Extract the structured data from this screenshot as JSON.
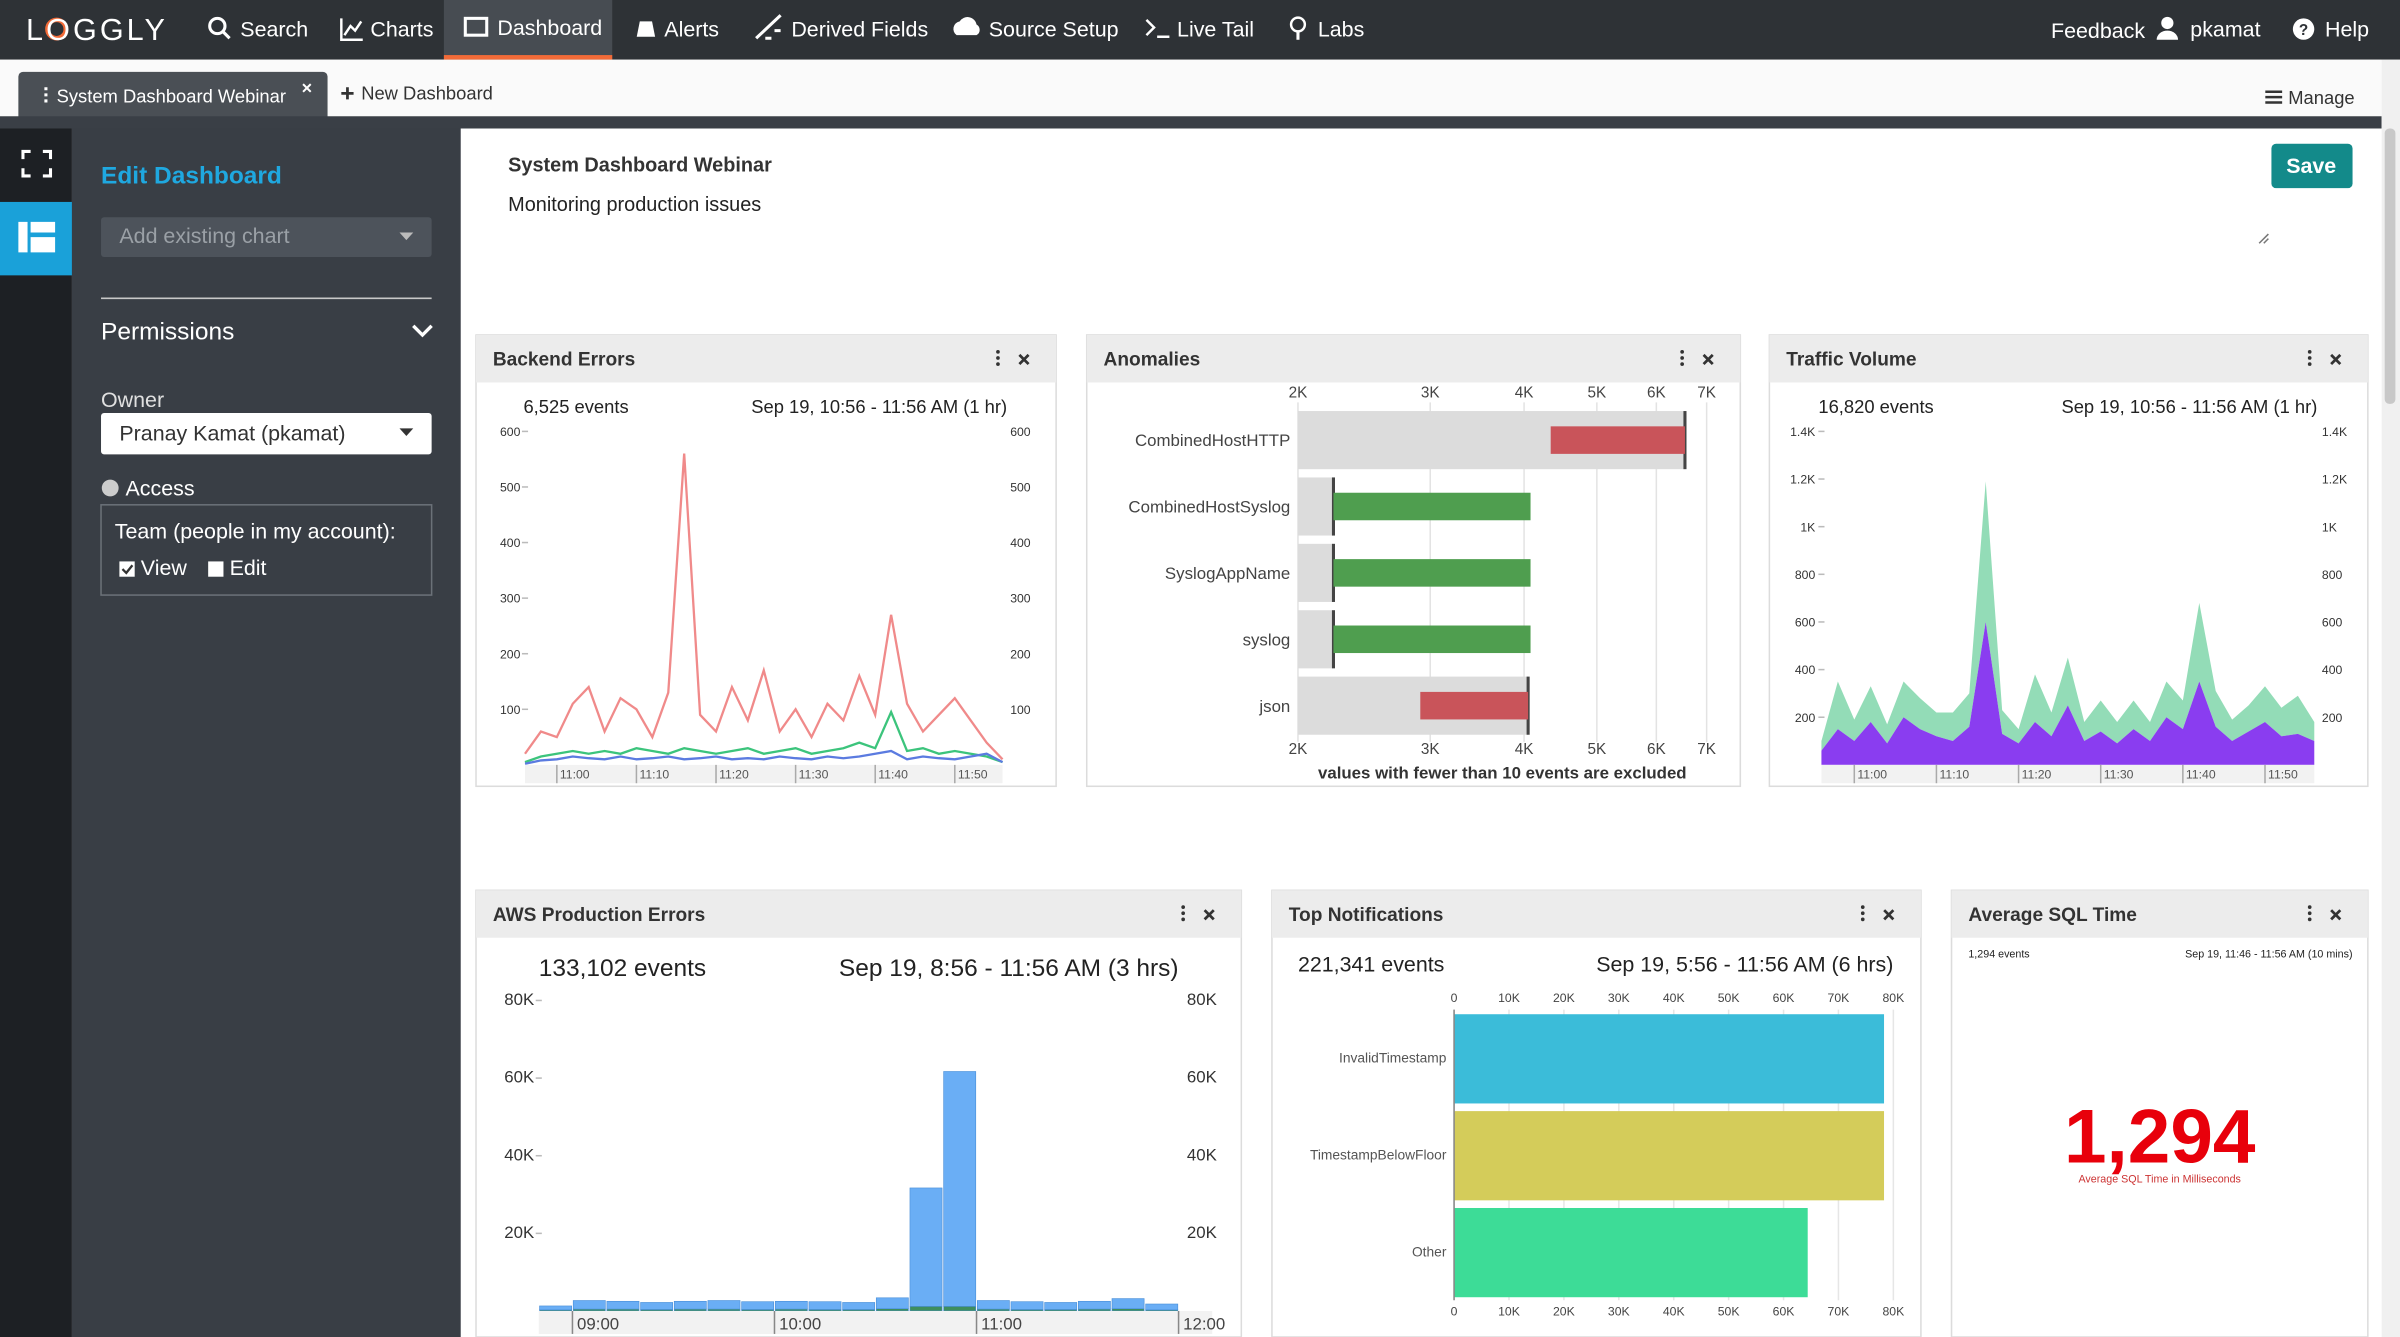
{
  "nav": {
    "logo": "LOGGLY",
    "items": [
      "Search",
      "Charts",
      "Dashboard",
      "Alerts",
      "Derived Fields",
      "Source Setup",
      "Live Tail",
      "Labs"
    ],
    "right": [
      "Feedback",
      "pkamat",
      "Help"
    ]
  },
  "tabs": {
    "active": "System Dashboard Webinar",
    "new": "New Dashboard",
    "manage": "Manage"
  },
  "sidebar": {
    "title": "Edit Dashboard",
    "add_chart": "Add existing chart",
    "permissions": "Permissions",
    "owner_label": "Owner",
    "owner": "Pranay Kamat (pkamat)",
    "access_label": "Access",
    "team": "Team (people in my account):",
    "view": "View",
    "edit": "Edit"
  },
  "dashboard": {
    "title": "System Dashboard Webinar",
    "description": "Monitoring production issues",
    "save": "Save"
  },
  "chart_data": [
    {
      "type": "line",
      "title": "Backend Errors",
      "events": "6,525 events",
      "time_range": "Sep 19, 10:56 - 11:56 AM  (1 hr)",
      "categories": [
        null,
        null,
        "11:00",
        null,
        null,
        null,
        null,
        "11:10",
        null,
        null,
        null,
        null,
        "11:20",
        null,
        null,
        null,
        null,
        "11:30",
        null,
        null,
        null,
        null,
        "11:40",
        null,
        null,
        null,
        null,
        "11:50",
        null,
        null,
        null
      ],
      "series": [
        {
          "color": "#f08a8a",
          "values": [
            20,
            60,
            50,
            110,
            140,
            60,
            120,
            100,
            50,
            130,
            560,
            90,
            60,
            140,
            80,
            170,
            60,
            100,
            50,
            110,
            80,
            160,
            90,
            270,
            110,
            60,
            90,
            120,
            80,
            40,
            10
          ]
        },
        {
          "color": "#3cc47c",
          "values": [
            5,
            15,
            20,
            25,
            20,
            25,
            20,
            30,
            25,
            20,
            30,
            25,
            20,
            25,
            30,
            20,
            25,
            30,
            20,
            25,
            30,
            40,
            30,
            95,
            25,
            30,
            20,
            25,
            20,
            15,
            5
          ]
        },
        {
          "color": "#5b7be0",
          "values": [
            2,
            8,
            10,
            15,
            12,
            10,
            15,
            10,
            12,
            15,
            10,
            12,
            15,
            10,
            12,
            10,
            15,
            12,
            10,
            15,
            12,
            15,
            20,
            25,
            10,
            15,
            12,
            10,
            15,
            20,
            5
          ]
        }
      ],
      "ylim": [
        0,
        600
      ],
      "yticks": [
        100,
        200,
        300,
        400,
        500,
        600
      ],
      "grid": false
    },
    {
      "type": "anomaly",
      "title": "Anomalies",
      "note": "values with fewer than 10 events are excluded",
      "categories": [
        "CombinedHostHTTP",
        "CombinedHostSyslog",
        "SyslogAppName",
        "syslog",
        "json"
      ],
      "series": [
        {
          "color": "#dcdcdc",
          "values": [
            6550,
            2230,
            2230,
            2230,
            4050
          ]
        },
        {
          "colors": [
            "#c9545a",
            "#4f9e4f",
            "#4f9e4f",
            "#4f9e4f",
            "#c9545a"
          ],
          "values": [
            4340,
            4080,
            4080,
            4080,
            2910
          ]
        }
      ],
      "xlim": [
        2000,
        7000
      ],
      "log_scale": true,
      "grid": true,
      "xticks": [
        {
          "value": 2000,
          "label": "2K"
        },
        {
          "value": 3000,
          "label": "3K"
        },
        {
          "value": 4000,
          "label": "4K"
        },
        {
          "value": 5000,
          "label": "5K"
        },
        {
          "value": 6000,
          "label": "6K"
        },
        {
          "value": 7000,
          "label": "7K"
        }
      ]
    },
    {
      "type": "area",
      "stacked": true,
      "title": "Traffic Volume",
      "events": "16,820 events",
      "time_range": "Sep 19, 10:56 - 11:56 AM  (1 hr)",
      "categories": [
        null,
        null,
        "11:00",
        null,
        null,
        null,
        null,
        "11:10",
        null,
        null,
        null,
        null,
        "11:20",
        null,
        null,
        null,
        null,
        "11:30",
        null,
        null,
        null,
        null,
        "11:40",
        null,
        null,
        null,
        null,
        "11:50",
        null,
        null,
        null
      ],
      "series": [
        {
          "color": "#8a3df0",
          "values": [
            60,
            150,
            100,
            180,
            90,
            200,
            150,
            120,
            100,
            160,
            600,
            130,
            90,
            180,
            120,
            250,
            100,
            140,
            90,
            150,
            100,
            200,
            150,
            350,
            160,
            100,
            140,
            180,
            120,
            130,
            100
          ]
        },
        {
          "color": "#93dcb7",
          "values": [
            40,
            200,
            90,
            150,
            80,
            150,
            130,
            100,
            120,
            140,
            590,
            100,
            60,
            200,
            100,
            200,
            80,
            130,
            90,
            120,
            80,
            150,
            120,
            330,
            150,
            90,
            110,
            150,
            120,
            160,
            80
          ]
        }
      ],
      "ylim": [
        0,
        1400
      ],
      "yticks": [
        200,
        400,
        600,
        800,
        {
          "value": 1000,
          "label": "1K"
        },
        {
          "value": 1200,
          "label": "1.2K"
        },
        {
          "value": 1400,
          "label": "1.4K"
        }
      ],
      "grid": false
    },
    {
      "type": "bar",
      "stacked": true,
      "title": "AWS Production Errors",
      "events": "133,102 events",
      "time_range": "Sep 19, 8:56 - 11:56 AM  (3 hrs)",
      "categories": [
        null,
        "09:00",
        null,
        null,
        null,
        null,
        null,
        "10:00",
        null,
        null,
        null,
        null,
        null,
        "11:00",
        null,
        null,
        null,
        null,
        null,
        "12:00"
      ],
      "series": [
        {
          "color": "#3e8e5e",
          "values": [
            300,
            500,
            500,
            400,
            500,
            500,
            400,
            500,
            400,
            400,
            600,
            1200,
            1200,
            500,
            400,
            400,
            500,
            600,
            300,
            null
          ]
        },
        {
          "color": "#6aaef5",
          "values": [
            1000,
            2200,
            2000,
            1800,
            2000,
            2200,
            2000,
            2000,
            2000,
            1800,
            2800,
            30500,
            60500,
            2200,
            2000,
            1800,
            2000,
            2600,
            1500,
            null
          ]
        }
      ],
      "ylim": [
        0,
        80000
      ],
      "yticks": [
        {
          "value": 20000,
          "label": "20K"
        },
        {
          "value": 40000,
          "label": "40K"
        },
        {
          "value": 60000,
          "label": "60K"
        },
        {
          "value": 80000,
          "label": "80K"
        }
      ],
      "grid": false
    },
    {
      "type": "barh",
      "title": "Top Notifications",
      "events": "221,341 events",
      "time_range": "Sep 19, 5:56 - 11:56 AM  (6 hrs)",
      "categories": [
        "InvalidTimestamp",
        "TimestampBelowFloor",
        "Other"
      ],
      "values": [
        78300,
        78300,
        64400
      ],
      "colors": [
        "#3bbcd9",
        "#d4cc5a",
        "#3ddc97"
      ],
      "xlim": [
        0,
        80000
      ],
      "grid": true,
      "xticks": [
        0,
        {
          "value": 10000,
          "label": "10K"
        },
        {
          "value": 20000,
          "label": "20K"
        },
        {
          "value": 30000,
          "label": "30K"
        },
        {
          "value": 40000,
          "label": "40K"
        },
        {
          "value": 50000,
          "label": "50K"
        },
        {
          "value": 60000,
          "label": "60K"
        },
        {
          "value": 70000,
          "label": "70K"
        },
        {
          "value": 80000,
          "label": "80K"
        }
      ]
    },
    {
      "type": "stat",
      "title": "Average SQL Time",
      "events": "1,294 events",
      "time_range": "Sep 19, 11:46 - 11:56 AM (10 mins)",
      "values": [
        1294
      ],
      "value_labels": [
        "1,294"
      ],
      "label": "Average SQL Time in Milliseconds",
      "color": "#e8000b"
    }
  ]
}
